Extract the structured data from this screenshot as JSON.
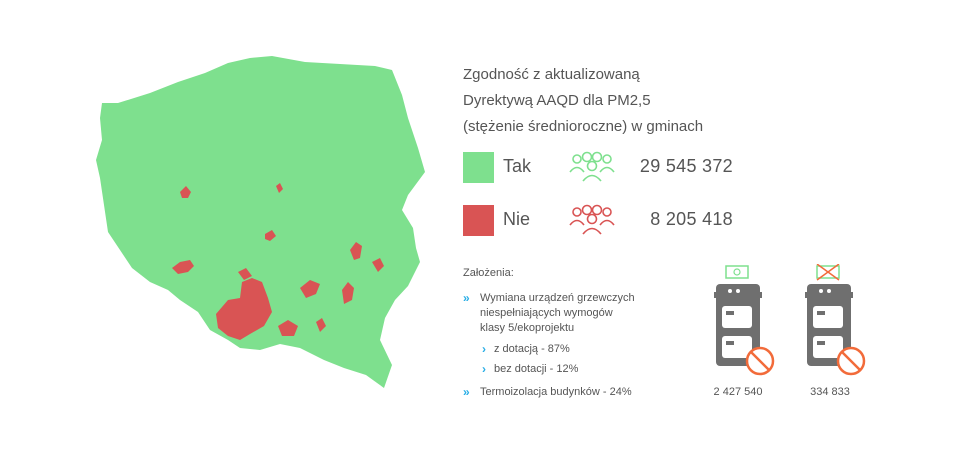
{
  "title_lines": [
    "Zgodność z aktualizowaną",
    "Dyrektywą AAQD dla PM2,5",
    "(stężenie średnioroczne) w gminach"
  ],
  "legend": [
    {
      "label": "Tak",
      "count": "29 545 372",
      "color": "#7ee08e",
      "icon": "people-group-icon"
    },
    {
      "label": "Nie",
      "count": "8 205 418",
      "color": "#d95454",
      "icon": "people-group-icon"
    }
  ],
  "assumptions": {
    "title": "Założenia:",
    "item1_lines": [
      "Wymiana urządzeń grzewczych",
      "niespełniających wymogów",
      "klasy 5/ekoprojektu"
    ],
    "sub1": "z dotacją - 87%",
    "sub2": "bez dotacji - 12%",
    "item2": "Termoizolacja budynków - 24%"
  },
  "boilers": [
    {
      "count": "2 427 540",
      "badge": "money-icon"
    },
    {
      "count": "334 833",
      "badge": "crossed-money-icon"
    }
  ],
  "colors": {
    "tak": "#7ee08e",
    "nie": "#d95454",
    "accent": "#29aee6",
    "boiler": "#6f6f6f",
    "prohibit": "#f26b3a"
  }
}
